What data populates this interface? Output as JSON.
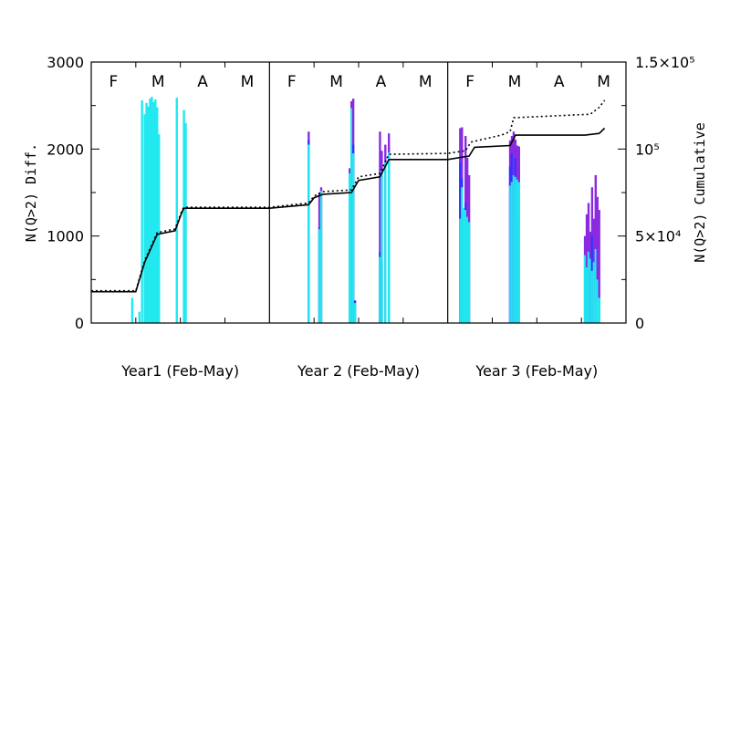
{
  "chart_data": {
    "type": "bar",
    "left_axis": {
      "label": "N(Q>2) Diff.",
      "range": [
        0,
        3000
      ],
      "ticks": [
        {
          "value": 0,
          "label": "0"
        },
        {
          "value": 1000,
          "label": "1000"
        },
        {
          "value": 2000,
          "label": "2000"
        },
        {
          "value": 3000,
          "label": "3000"
        }
      ]
    },
    "right_axis": {
      "label": "N(Q>2) Cumulative",
      "range": [
        0,
        150000
      ],
      "ticks": [
        {
          "value": 0,
          "label": "0"
        },
        {
          "value": 50000,
          "label": "5×10⁴"
        },
        {
          "value": 100000,
          "label": "10⁵"
        },
        {
          "value": 150000,
          "label": "1.5×10⁵"
        }
      ]
    },
    "x_range": [
      0,
      12
    ],
    "panels": [
      {
        "label": "Year1 (Feb-May)",
        "months": [
          "F",
          "M",
          "A",
          "M"
        ]
      },
      {
        "label": "Year 2 (Feb-May)",
        "months": [
          "F",
          "M",
          "A",
          "M"
        ]
      },
      {
        "label": "Year 3 (Feb-May)",
        "months": [
          "F",
          "M",
          "A",
          "M"
        ]
      }
    ],
    "colors": {
      "cyan": "#22e8f0",
      "blue": "#2a35ff",
      "purple": "#8a2be2",
      "line": "#000000"
    },
    "bars": [
      {
        "x": 0.23,
        "cyan": 290
      },
      {
        "x": 0.27,
        "cyan": 130
      },
      {
        "x": 0.285,
        "cyan": 2560
      },
      {
        "x": 0.3,
        "cyan": 2400
      },
      {
        "x": 0.31,
        "cyan": 2530
      },
      {
        "x": 0.32,
        "cyan": 2490
      },
      {
        "x": 0.33,
        "cyan": 2580
      },
      {
        "x": 0.34,
        "cyan": 2600
      },
      {
        "x": 0.35,
        "cyan": 2540
      },
      {
        "x": 0.36,
        "cyan": 2570
      },
      {
        "x": 0.37,
        "cyan": 2480
      },
      {
        "x": 0.38,
        "cyan": 2170
      },
      {
        "x": 0.48,
        "cyan": 2590
      },
      {
        "x": 0.52,
        "cyan": 2450
      },
      {
        "x": 0.53,
        "cyan": 2300
      },
      {
        "x": 1.22,
        "cyan": 2050,
        "blue": 2100,
        "purple": 2200
      },
      {
        "x": 1.28,
        "cyan": 1080,
        "blue": 1100,
        "purple": 1500
      },
      {
        "x": 1.29,
        "cyan": 1520,
        "purple": 1560
      },
      {
        "x": 1.45,
        "cyan": 1720,
        "purple": 1780
      },
      {
        "x": 1.46,
        "cyan": 2470,
        "purple": 2550
      },
      {
        "x": 1.47,
        "cyan": 1950,
        "blue": 2050,
        "purple": 2580
      },
      {
        "x": 1.48,
        "cyan": 230,
        "blue": 260
      },
      {
        "x": 1.62,
        "cyan": 760,
        "blue": 820,
        "purple": 2200
      },
      {
        "x": 1.63,
        "cyan": 1750,
        "blue": 700,
        "purple": 1980
      },
      {
        "x": 1.65,
        "cyan": 1850,
        "purple": 2050
      },
      {
        "x": 1.67,
        "cyan": 1960,
        "purple": 2180
      },
      {
        "x": 2.07,
        "cyan": 1200,
        "blue": 1850,
        "purple": 2240
      },
      {
        "x": 2.08,
        "cyan": 1560,
        "blue": 1660,
        "purple": 2250
      },
      {
        "x": 2.09,
        "cyan": 1320,
        "blue": 140,
        "purple": 1280
      },
      {
        "x": 2.1,
        "cyan": 1300,
        "blue": 1380,
        "purple": 2150
      },
      {
        "x": 2.11,
        "cyan": 1220,
        "purple": 1900
      },
      {
        "x": 2.12,
        "cyan": 1160,
        "purple": 1700
      },
      {
        "x": 2.35,
        "cyan": 1580,
        "blue": 1800,
        "purple": 2100
      },
      {
        "x": 2.36,
        "cyan": 1620,
        "blue": 1950,
        "purple": 2150
      },
      {
        "x": 2.37,
        "cyan": 1700,
        "purple": 2200
      },
      {
        "x": 2.38,
        "cyan": 1680,
        "blue": 1900,
        "purple": 2110
      },
      {
        "x": 2.39,
        "cyan": 1650,
        "purple": 2040
      },
      {
        "x": 2.4,
        "cyan": 1620,
        "blue": 1200,
        "purple": 2030
      },
      {
        "x": 2.77,
        "cyan": 780,
        "purple": 1000
      },
      {
        "x": 2.78,
        "cyan": 640,
        "purple": 1250
      },
      {
        "x": 2.79,
        "cyan": 820,
        "purple": 1380
      },
      {
        "x": 2.8,
        "cyan": 740,
        "blue": 600,
        "purple": 1050
      },
      {
        "x": 2.81,
        "cyan": 600,
        "blue": 1000,
        "purple": 1560
      },
      {
        "x": 2.82,
        "cyan": 700,
        "purple": 1200
      },
      {
        "x": 2.83,
        "cyan": 850,
        "purple": 1700
      },
      {
        "x": 2.84,
        "cyan": 500,
        "purple": 1450
      },
      {
        "x": 2.85,
        "cyan": 290,
        "purple": 1300
      }
    ],
    "solid_line": [
      [
        0,
        18000
      ],
      [
        0.25,
        18000
      ],
      [
        0.3,
        35000
      ],
      [
        0.37,
        51000
      ],
      [
        0.47,
        53000
      ],
      [
        0.51,
        64000
      ],
      [
        0.52,
        66000
      ],
      [
        1,
        66000
      ],
      [
        1.22,
        68000
      ],
      [
        1.25,
        72000
      ],
      [
        1.3,
        74000
      ],
      [
        1.46,
        75000
      ],
      [
        1.5,
        82000
      ],
      [
        1.62,
        84000
      ],
      [
        1.67,
        94000
      ],
      [
        2,
        94000
      ],
      [
        2.12,
        96000
      ],
      [
        2.15,
        101000
      ],
      [
        2.35,
        102000
      ],
      [
        2.38,
        108000
      ],
      [
        2.77,
        108000
      ],
      [
        2.85,
        109000
      ],
      [
        2.88,
        112000
      ]
    ],
    "dotted_line": [
      [
        0,
        18500
      ],
      [
        0.25,
        18500
      ],
      [
        0.3,
        36000
      ],
      [
        0.37,
        52000
      ],
      [
        0.47,
        54000
      ],
      [
        0.51,
        65000
      ],
      [
        0.52,
        66500
      ],
      [
        1,
        66500
      ],
      [
        1.22,
        69000
      ],
      [
        1.25,
        73000
      ],
      [
        1.3,
        75500
      ],
      [
        1.46,
        76500
      ],
      [
        1.5,
        84000
      ],
      [
        1.62,
        86000
      ],
      [
        1.67,
        97000
      ],
      [
        2,
        97500
      ],
      [
        2.1,
        99000
      ],
      [
        2.13,
        104000
      ],
      [
        2.3,
        108000
      ],
      [
        2.35,
        110000
      ],
      [
        2.37,
        118000
      ],
      [
        2.8,
        120000
      ],
      [
        2.85,
        124000
      ],
      [
        2.88,
        128000
      ]
    ]
  }
}
